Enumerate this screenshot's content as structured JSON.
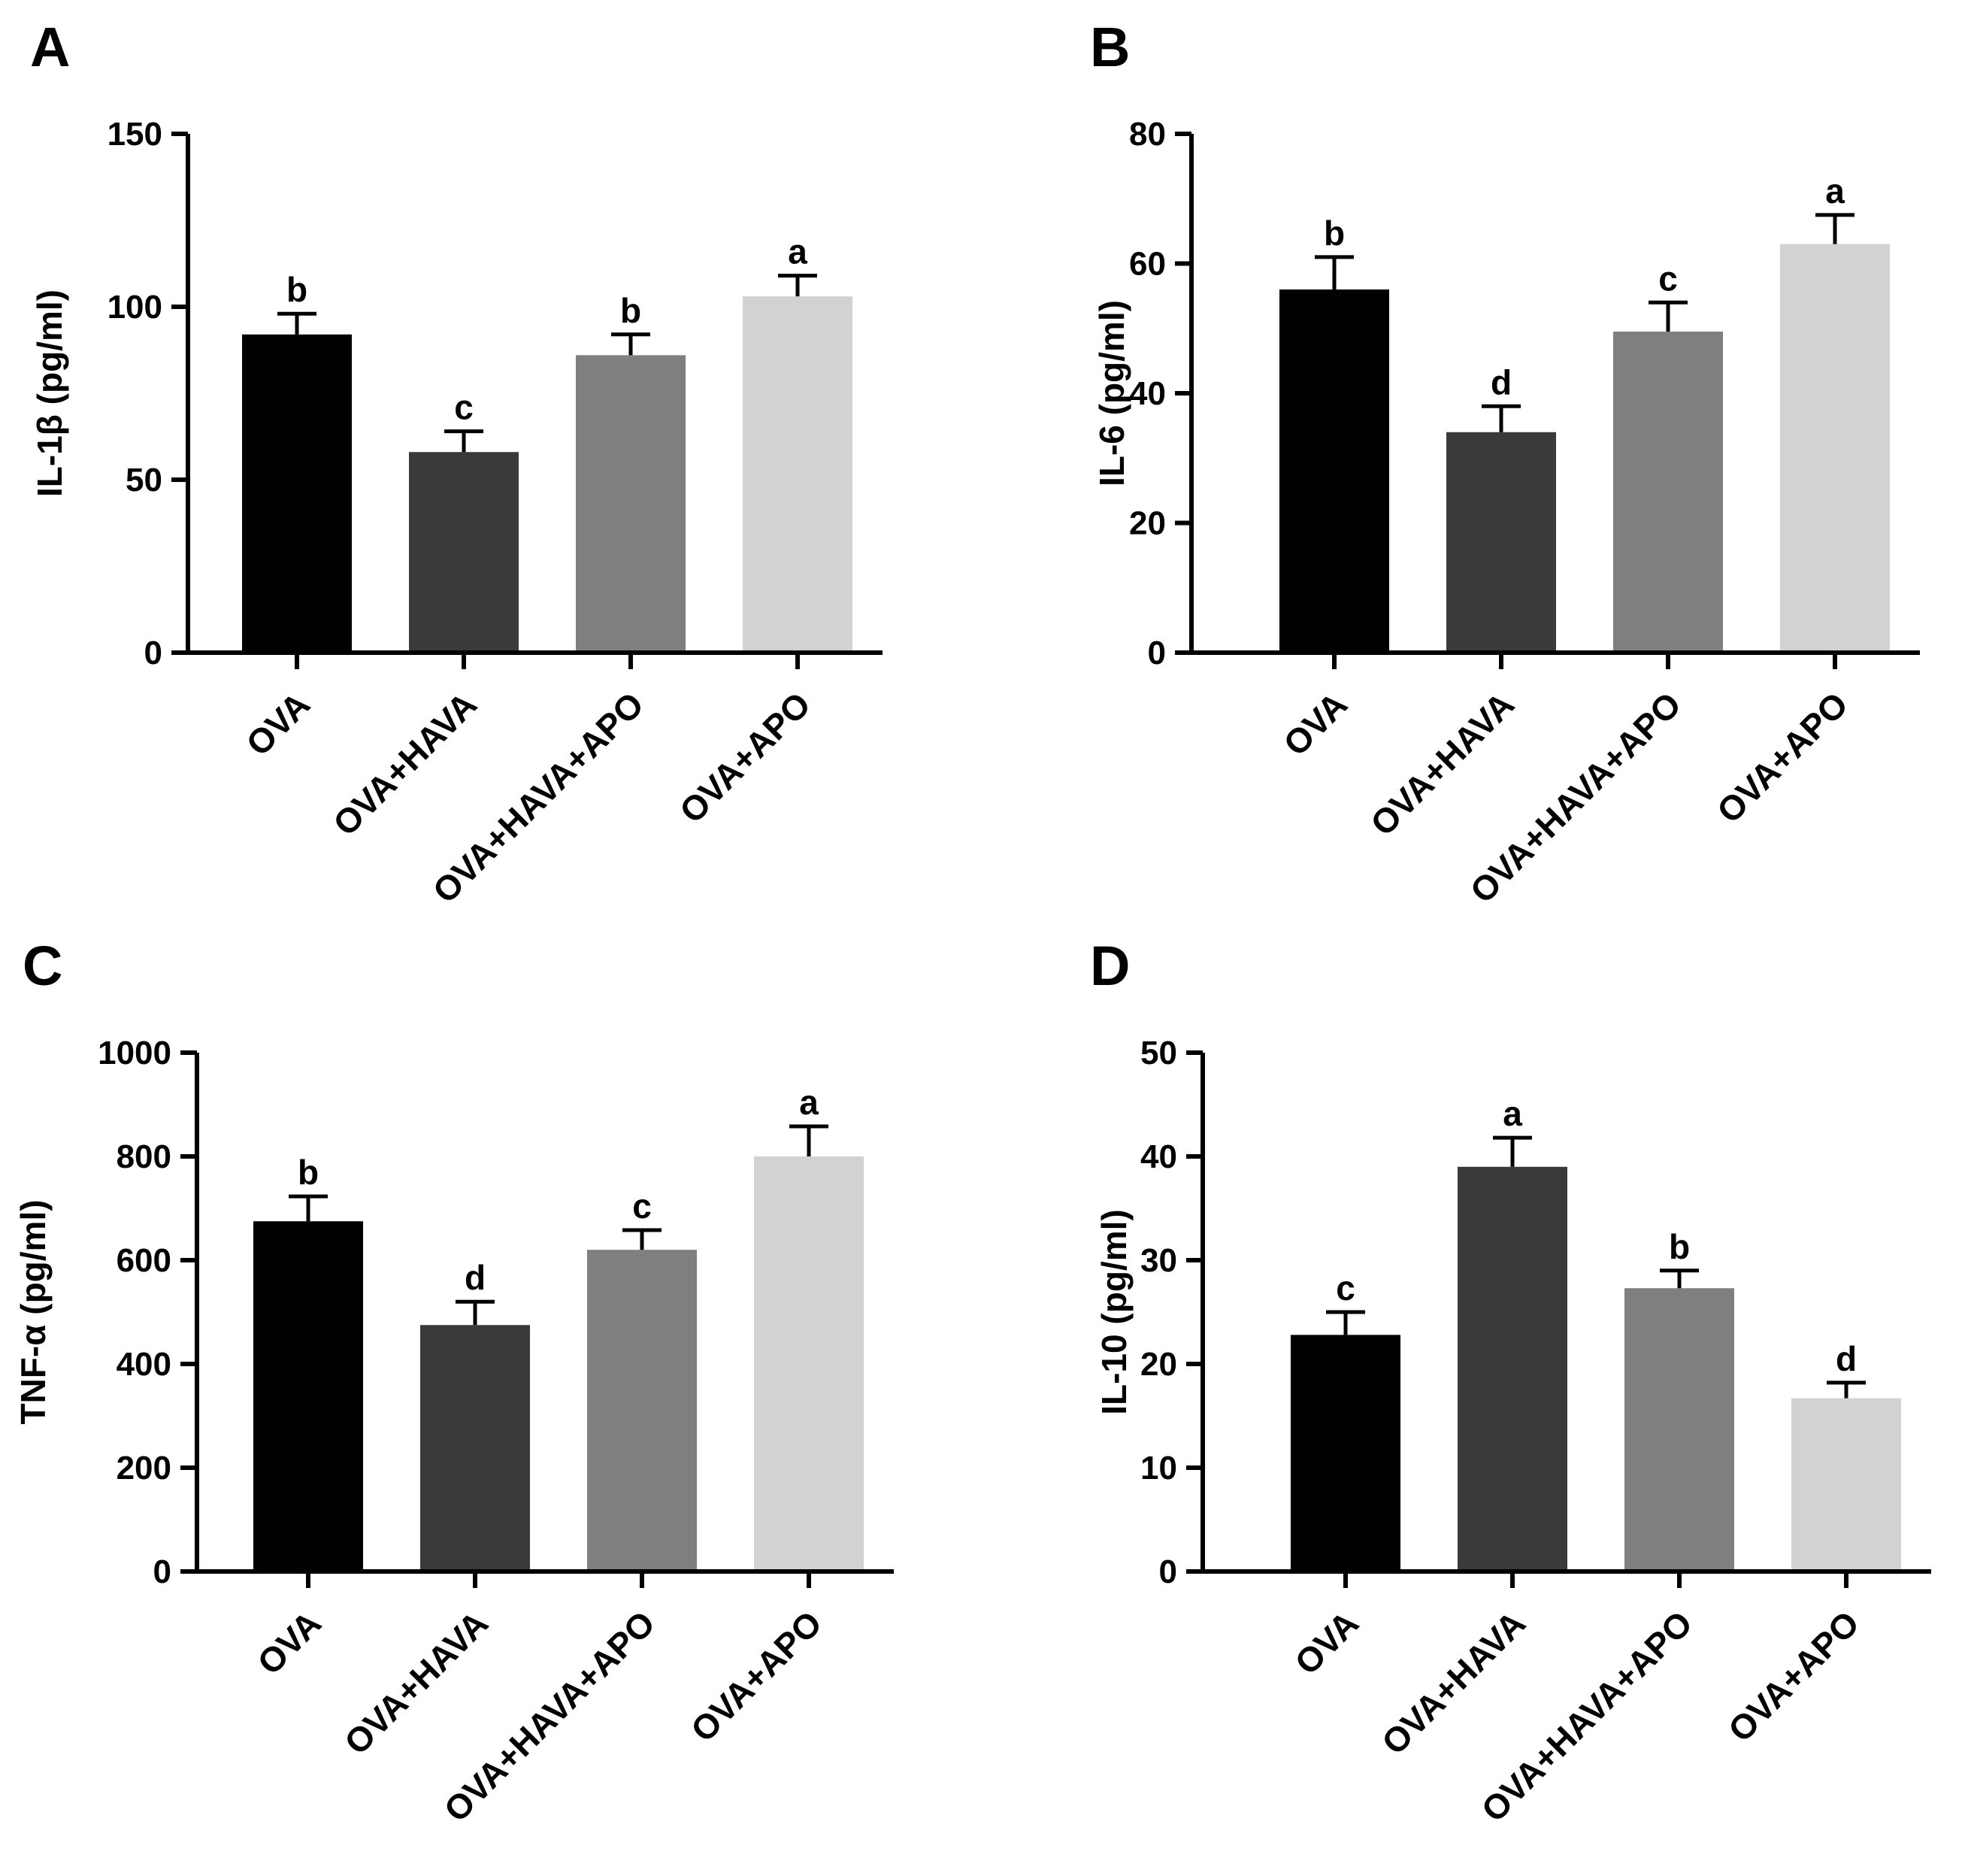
{
  "chart_data": [
    {
      "panel": "A",
      "type": "bar",
      "ylabel": "IL-1β (pg/ml)",
      "ylim": [
        0,
        150
      ],
      "yticks": [
        0,
        50,
        100,
        150
      ],
      "categories": [
        "OVA",
        "OVA+HAVA",
        "OVA+HAVA+APO",
        "OVA+APO"
      ],
      "values": [
        92,
        58,
        86,
        103
      ],
      "errors": [
        6,
        6,
        6,
        6
      ],
      "significance": [
        "b",
        "c",
        "b",
        "a"
      ],
      "colors": [
        "#000000",
        "#3a3a3a",
        "#7f7f7f",
        "#d2d2d2"
      ]
    },
    {
      "panel": "B",
      "type": "bar",
      "ylabel": "IL-6 (pg/ml)",
      "ylim": [
        0,
        80
      ],
      "yticks": [
        0,
        20,
        40,
        60,
        80
      ],
      "categories": [
        "OVA",
        "OVA+HAVA",
        "OVA+HAVA+APO",
        "OVA+APO"
      ],
      "values": [
        56,
        34,
        49.5,
        63
      ],
      "errors": [
        5,
        4,
        4.5,
        4.5
      ],
      "significance": [
        "b",
        "d",
        "c",
        "a"
      ],
      "colors": [
        "#000000",
        "#3a3a3a",
        "#7f7f7f",
        "#d2d2d2"
      ]
    },
    {
      "panel": "C",
      "type": "bar",
      "ylabel": "TNF-α (pg/ml)",
      "ylim": [
        0,
        1000
      ],
      "yticks": [
        0,
        200,
        400,
        600,
        800,
        1000
      ],
      "categories": [
        "OVA",
        "OVA+HAVA",
        "OVA+HAVA+APO",
        "OVA+APO"
      ],
      "values": [
        675,
        475,
        620,
        800
      ],
      "errors": [
        48,
        45,
        38,
        58
      ],
      "significance": [
        "b",
        "d",
        "c",
        "a"
      ],
      "colors": [
        "#000000",
        "#3a3a3a",
        "#7f7f7f",
        "#d2d2d2"
      ]
    },
    {
      "panel": "D",
      "type": "bar",
      "ylabel": "IL-10 (pg/ml)",
      "ylim": [
        0,
        50
      ],
      "yticks": [
        0,
        10,
        20,
        30,
        40,
        50
      ],
      "categories": [
        "OVA",
        "OVA+HAVA",
        "OVA+HAVA+APO",
        "OVA+APO"
      ],
      "values": [
        22.8,
        39,
        27.3,
        16.7
      ],
      "errors": [
        2.2,
        2.8,
        1.7,
        1.5
      ],
      "significance": [
        "c",
        "a",
        "b",
        "d"
      ],
      "colors": [
        "#000000",
        "#3a3a3a",
        "#7f7f7f",
        "#d2d2d2"
      ]
    }
  ]
}
